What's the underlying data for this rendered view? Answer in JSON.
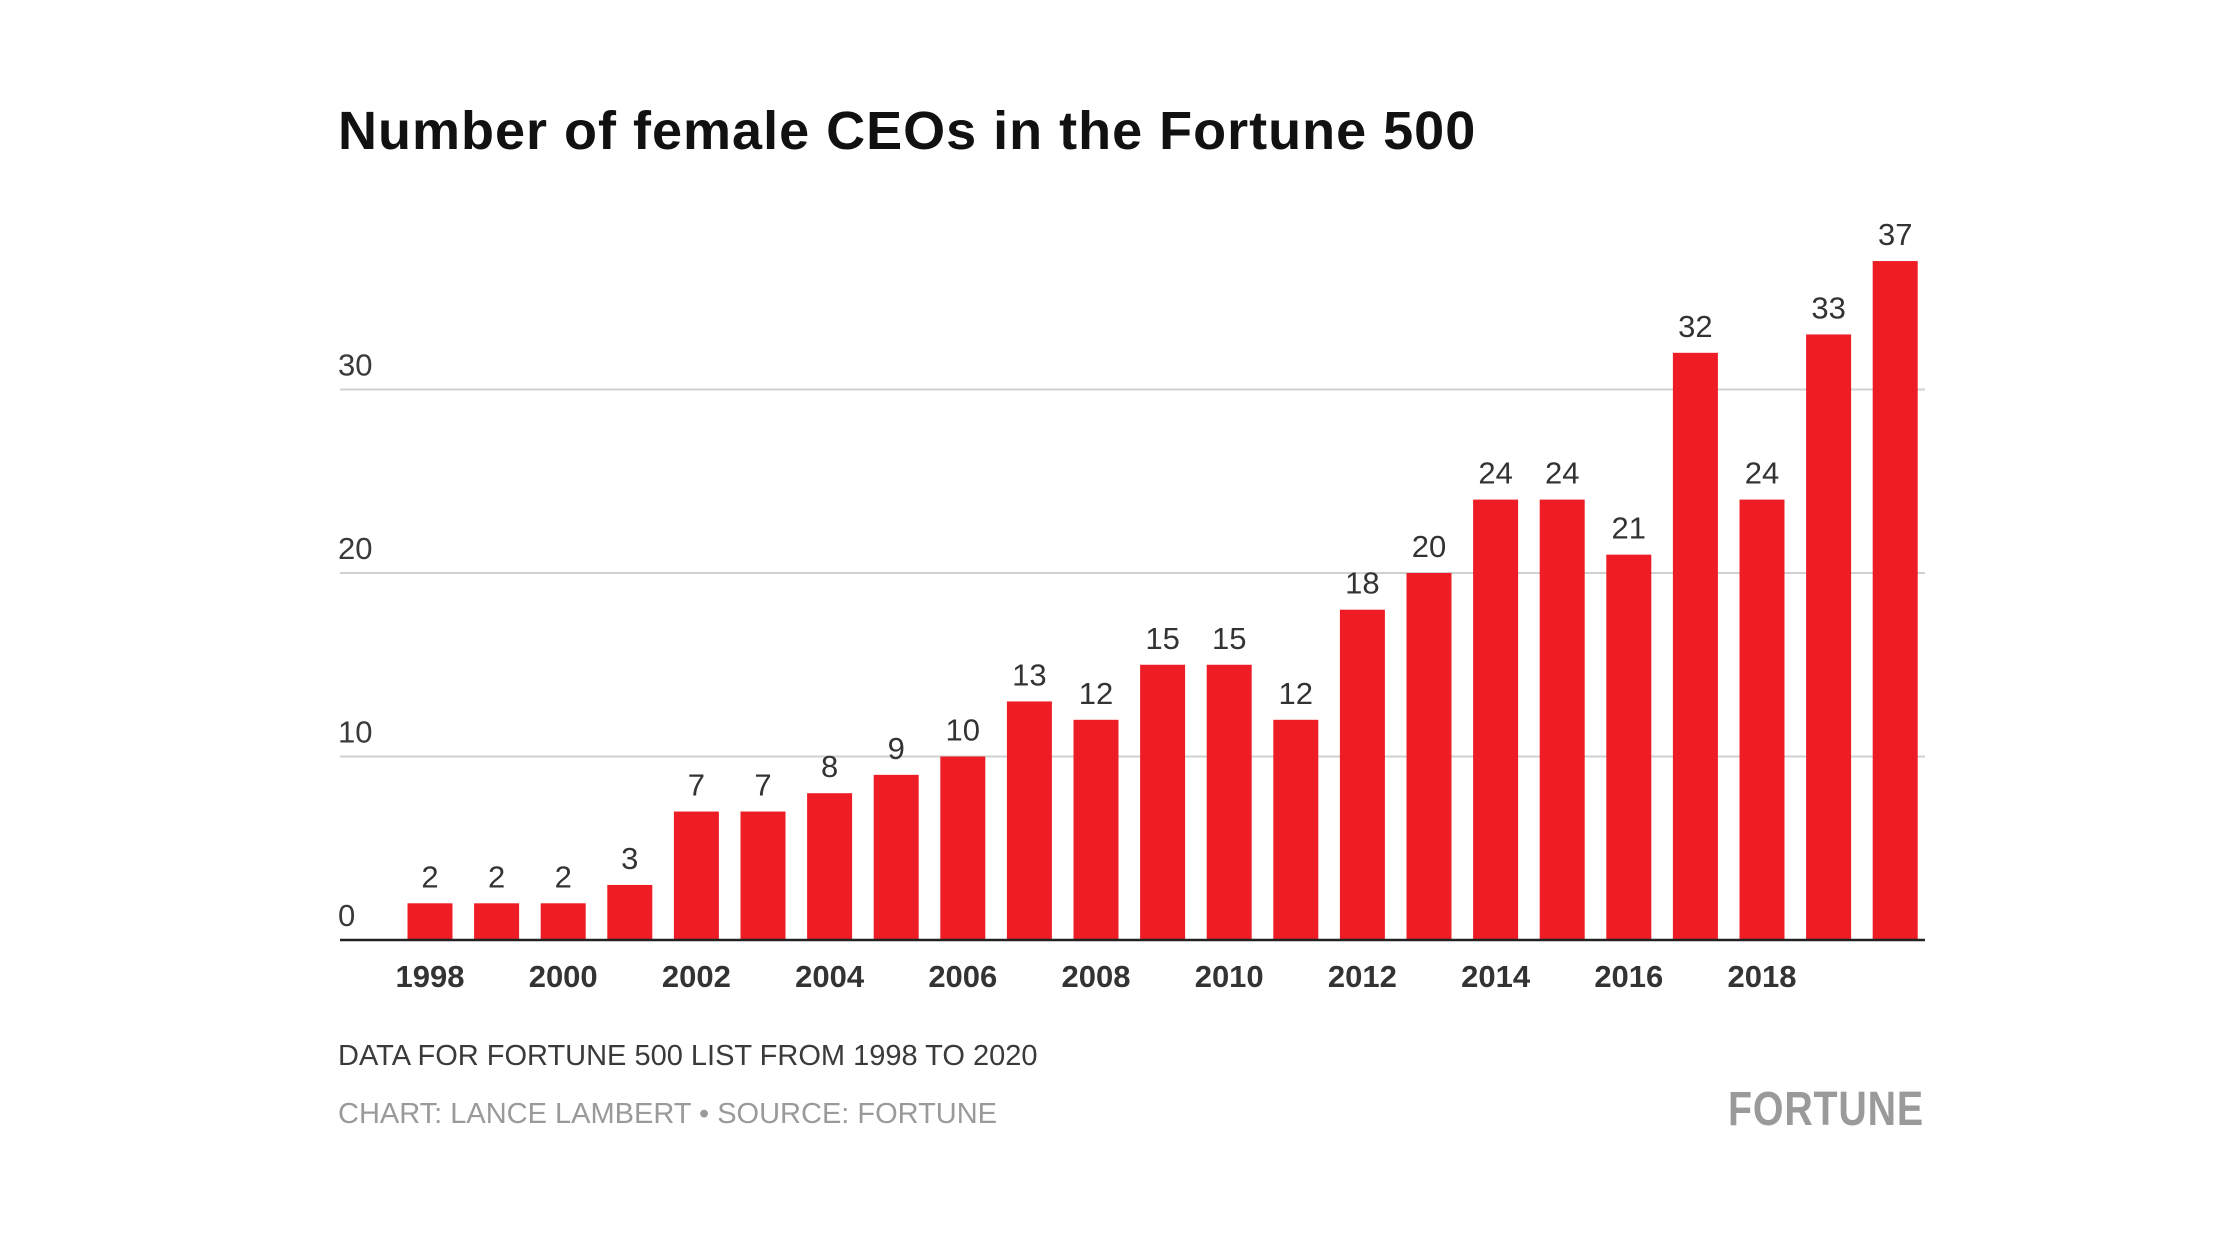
{
  "chart_data": {
    "type": "bar",
    "title": "Number of female CEOs in the Fortune 500",
    "categories": [
      "1998",
      "1999",
      "2000",
      "2001",
      "2002",
      "2003",
      "2004",
      "2005",
      "2006",
      "2007",
      "2008",
      "2009",
      "2010",
      "2011",
      "2012",
      "2013",
      "2014",
      "2015",
      "2016",
      "2017",
      "2018",
      "2019",
      "2020"
    ],
    "values": [
      2,
      2,
      2,
      3,
      7,
      7,
      8,
      9,
      10,
      13,
      12,
      15,
      15,
      12,
      18,
      20,
      24,
      24,
      21,
      32,
      24,
      33,
      37
    ],
    "x_tick_labels": [
      "1998",
      "2000",
      "2002",
      "2004",
      "2006",
      "2008",
      "2010",
      "2012",
      "2014",
      "2016",
      "2018"
    ],
    "y_ticks": [
      0,
      10,
      20,
      30
    ],
    "ylim": [
      0,
      37
    ],
    "data_labels": true,
    "grid": true,
    "bar_color": "#ee1c25",
    "xlabel": "",
    "ylabel": ""
  },
  "footer": {
    "note": "DATA FOR FORTUNE 500 LIST FROM 1998 TO 2020",
    "credit": "CHART: LANCE LAMBERT • SOURCE: FORTUNE",
    "logo": "FORTUNE"
  }
}
